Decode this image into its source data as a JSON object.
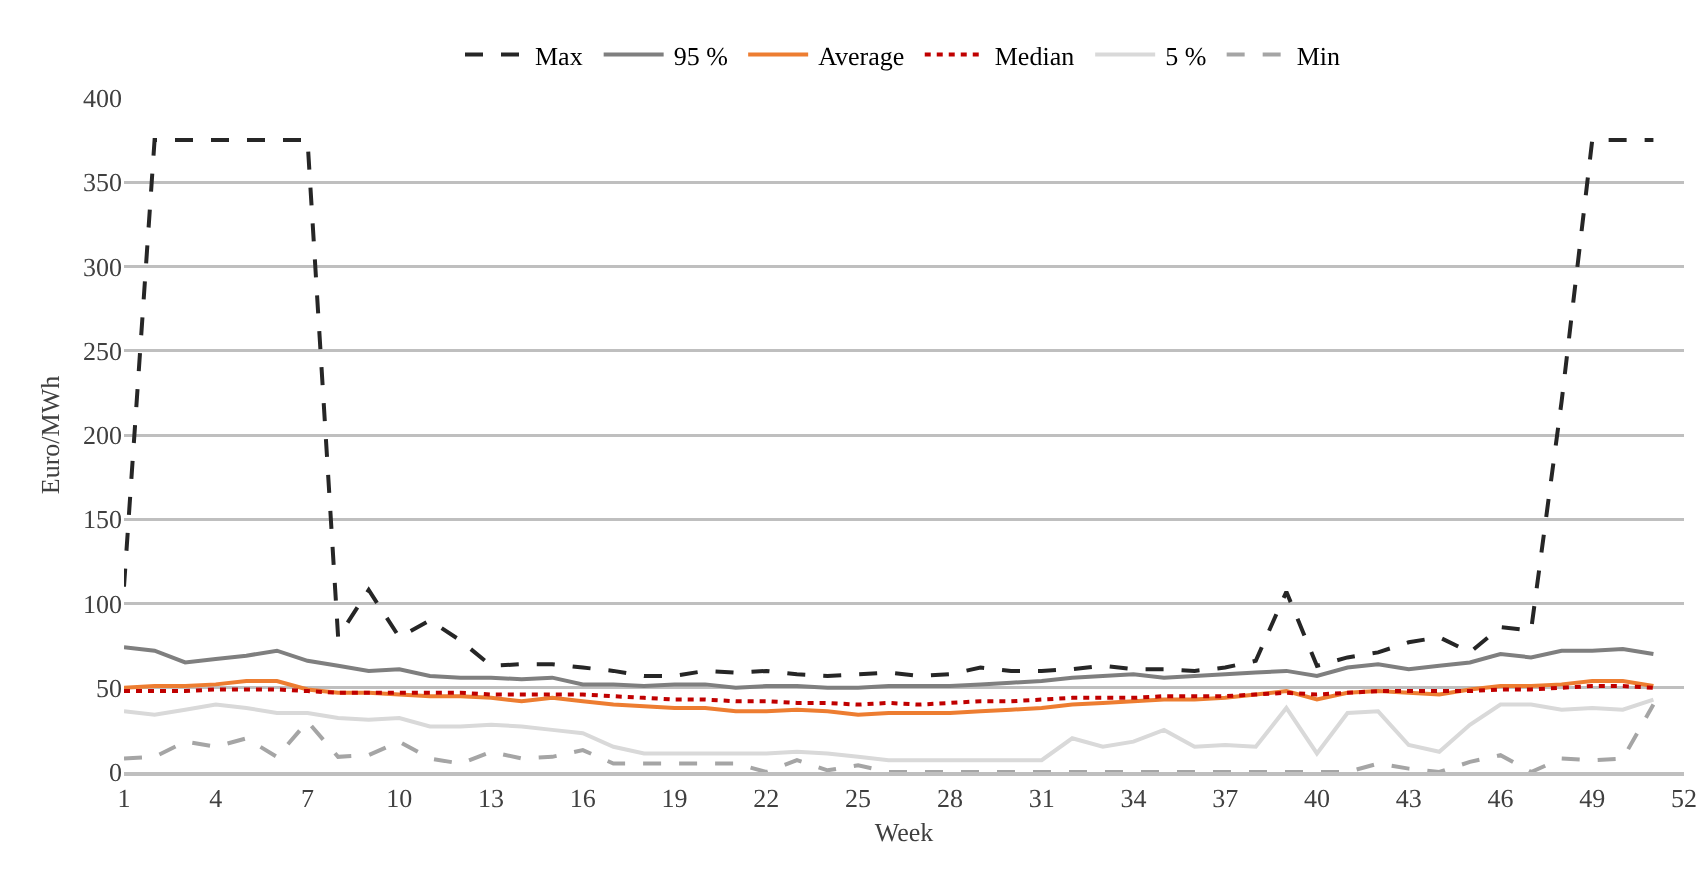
{
  "chart_data": {
    "type": "line",
    "xlabel": "Week",
    "ylabel": "Euro/MWh",
    "x": [
      1,
      2,
      3,
      4,
      5,
      6,
      7,
      8,
      9,
      10,
      11,
      12,
      13,
      14,
      15,
      16,
      17,
      18,
      19,
      20,
      21,
      22,
      23,
      24,
      25,
      26,
      27,
      28,
      29,
      30,
      31,
      32,
      33,
      34,
      35,
      36,
      37,
      38,
      39,
      40,
      41,
      42,
      43,
      44,
      45,
      46,
      47,
      48,
      49,
      50,
      51
    ],
    "xlim": [
      1,
      52
    ],
    "xticks": [
      1,
      4,
      7,
      10,
      13,
      16,
      19,
      22,
      25,
      28,
      31,
      34,
      37,
      40,
      43,
      46,
      49,
      52
    ],
    "ylim": [
      0,
      400
    ],
    "yticks": [
      0,
      50,
      100,
      150,
      200,
      250,
      300,
      350,
      400
    ],
    "grid": "y",
    "legend": "top",
    "series": [
      {
        "name": "Max",
        "color": "#262626",
        "line_style": "dashed",
        "values": [
          110,
          375,
          375,
          375,
          375,
          375,
          375,
          80,
          108,
          80,
          90,
          78,
          63,
          64,
          64,
          62,
          60,
          57,
          57,
          60,
          59,
          60,
          58,
          57,
          58,
          59,
          57,
          58,
          62,
          60,
          60,
          61,
          63,
          61,
          61,
          60,
          62,
          66,
          107,
          63,
          68,
          71,
          77,
          80,
          71,
          86,
          84,
          220,
          375,
          375,
          375
        ]
      },
      {
        "name": "95 %",
        "color": "#7f7f7f",
        "line_style": "solid",
        "values": [
          74,
          72,
          65,
          67,
          69,
          72,
          66,
          63,
          60,
          61,
          57,
          56,
          56,
          55,
          56,
          52,
          52,
          51,
          52,
          52,
          50,
          51,
          51,
          50,
          50,
          51,
          51,
          51,
          52,
          53,
          54,
          56,
          57,
          58,
          56,
          57,
          58,
          59,
          60,
          57,
          62,
          64,
          61,
          63,
          65,
          70,
          68,
          72,
          72,
          73,
          70
        ]
      },
      {
        "name": "Average",
        "color": "#ed7d31",
        "line_style": "solid",
        "values": [
          50,
          51,
          51,
          52,
          54,
          54,
          49,
          47,
          47,
          46,
          45,
          45,
          44,
          42,
          44,
          42,
          40,
          39,
          38,
          38,
          36,
          36,
          37,
          36,
          34,
          35,
          35,
          35,
          36,
          37,
          38,
          40,
          41,
          42,
          43,
          43,
          44,
          46,
          48,
          43,
          47,
          48,
          47,
          46,
          49,
          51,
          51,
          52,
          54,
          54,
          51
        ]
      },
      {
        "name": "Median",
        "color": "#c00000",
        "line_style": "dotted",
        "values": [
          48,
          48,
          48,
          49,
          49,
          49,
          48,
          47,
          47,
          47,
          47,
          47,
          46,
          46,
          46,
          46,
          45,
          44,
          43,
          43,
          42,
          42,
          41,
          41,
          40,
          41,
          40,
          41,
          42,
          42,
          43,
          44,
          44,
          44,
          45,
          45,
          45,
          46,
          47,
          46,
          47,
          48,
          48,
          48,
          48,
          49,
          49,
          50,
          51,
          51,
          50
        ]
      },
      {
        "name": "5 %",
        "color": "#d9d9d9",
        "line_style": "solid",
        "values": [
          36,
          34,
          37,
          40,
          38,
          35,
          35,
          32,
          31,
          32,
          27,
          27,
          28,
          27,
          25,
          23,
          15,
          11,
          11,
          11,
          11,
          11,
          12,
          11,
          9,
          7,
          7,
          7,
          7,
          7,
          7,
          20,
          15,
          18,
          25,
          15,
          16,
          15,
          38,
          11,
          35,
          36,
          16,
          12,
          28,
          40,
          40,
          37,
          38,
          37,
          43
        ]
      },
      {
        "name": "Min",
        "color": "#a5a5a5",
        "line_style": "dashed",
        "values": [
          8,
          9,
          18,
          15,
          20,
          9,
          30,
          9,
          10,
          18,
          8,
          5,
          12,
          8,
          9,
          13,
          5,
          5,
          5,
          5,
          5,
          0,
          7,
          1,
          4,
          0,
          0,
          0,
          0,
          0,
          0,
          0,
          0,
          0,
          0,
          0,
          0,
          0,
          0,
          0,
          0,
          5,
          2,
          0,
          6,
          10,
          0,
          8,
          7,
          8,
          40
        ]
      }
    ]
  }
}
